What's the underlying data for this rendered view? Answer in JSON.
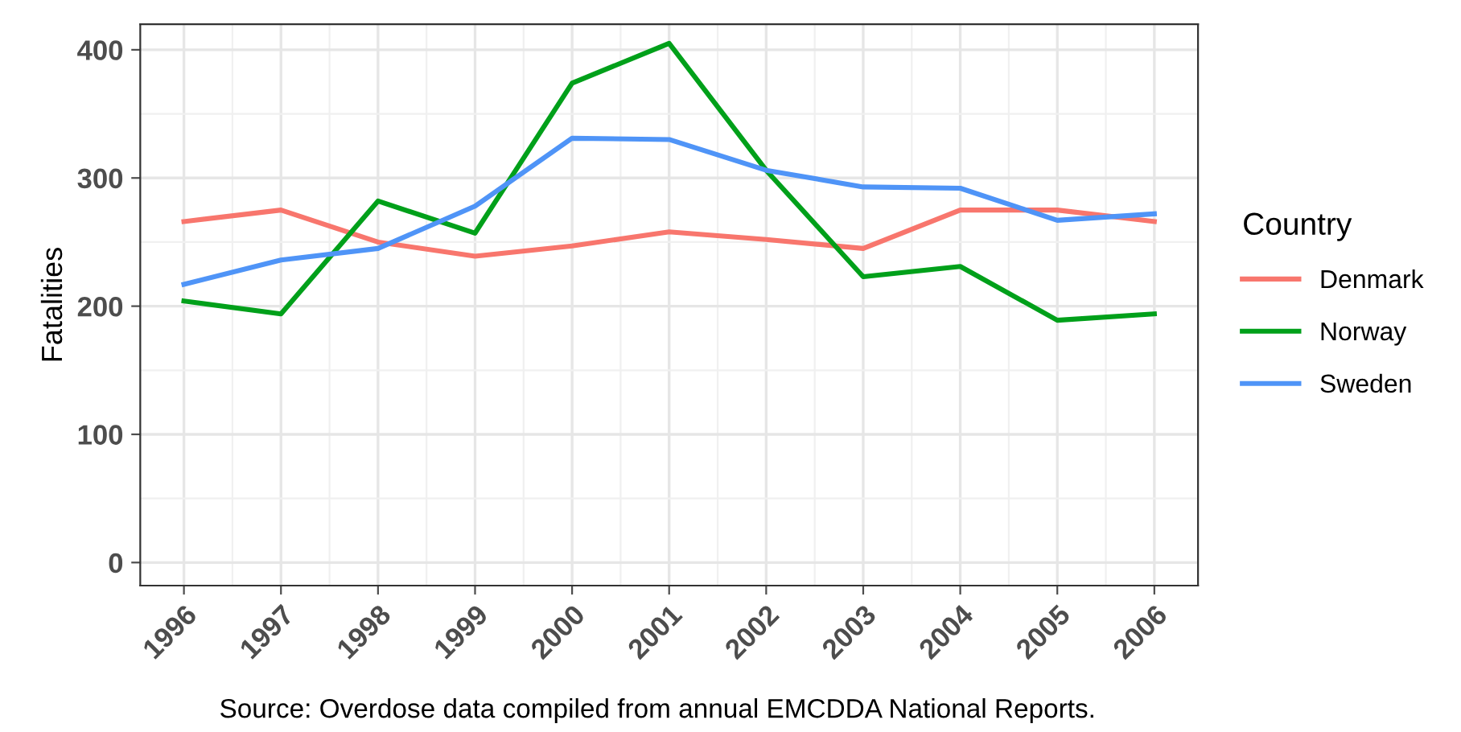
{
  "chart_data": {
    "type": "line",
    "xlabel": null,
    "ylabel": "Fatalities",
    "legend_title": "Country",
    "legend": "right",
    "grid": true,
    "x": [
      1996,
      1997,
      1998,
      1999,
      2000,
      2001,
      2002,
      2003,
      2004,
      2005,
      2006
    ],
    "xlim": [
      1995.55,
      2006.45
    ],
    "xticks": [
      1996,
      1997,
      1998,
      1999,
      2000,
      2001,
      2002,
      2003,
      2004,
      2005,
      2006
    ],
    "ylim": [
      -18,
      420
    ],
    "yticks": [
      0,
      100,
      200,
      300,
      400
    ],
    "series": [
      {
        "name": "Denmark",
        "color": "#f8766d",
        "values": [
          266,
          275,
          250,
          239,
          247,
          258,
          252,
          245,
          275,
          275,
          266
        ]
      },
      {
        "name": "Norway",
        "color": "#00a01a",
        "values": [
          204,
          194,
          282,
          257,
          374,
          405,
          306,
          223,
          231,
          189,
          194
        ]
      },
      {
        "name": "Sweden",
        "color": "#4f94f7",
        "values": [
          217,
          236,
          245,
          278,
          331,
          330,
          306,
          293,
          292,
          267,
          272
        ]
      }
    ],
    "annotations": [
      "Source: Overdose data compiled from annual EMCDDA National Reports."
    ]
  }
}
